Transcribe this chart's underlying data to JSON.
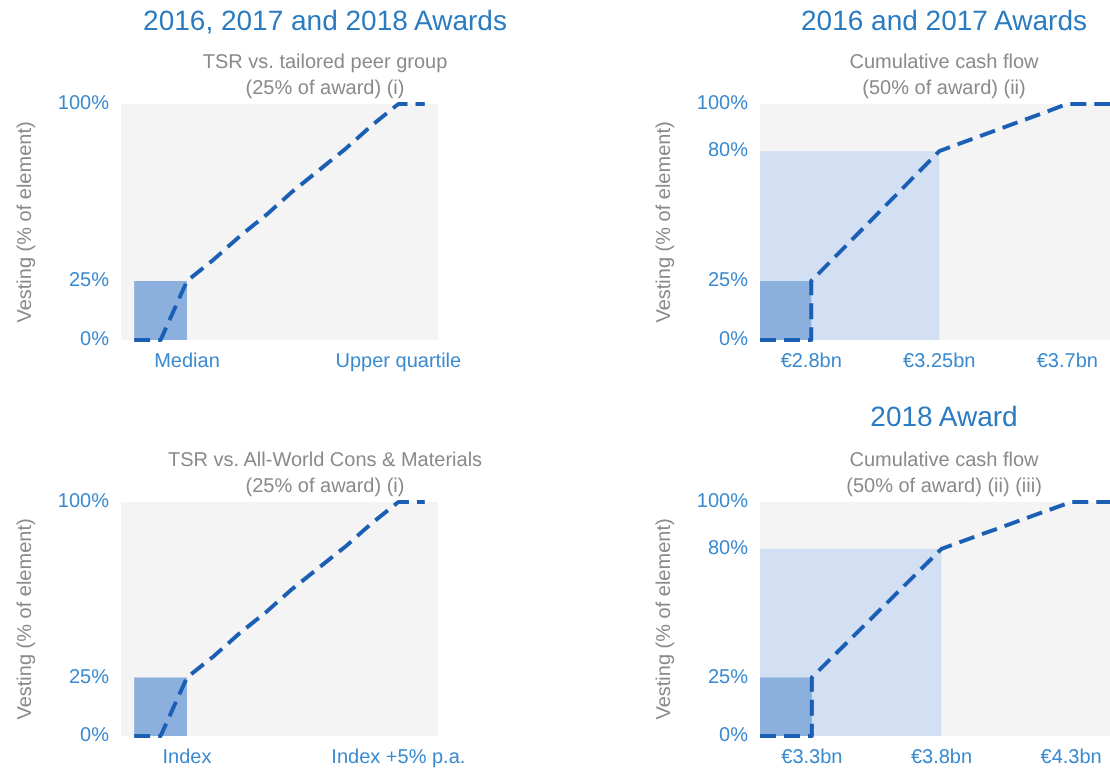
{
  "chart_data": [
    {
      "type": "line",
      "title": "2016, 2017 and 2018 Awards",
      "subtitle": "TSR vs. tailored peer group (25% of award) (i)",
      "ylabel": "Vesting (% of element)",
      "categories": [
        null,
        null,
        "Median",
        null,
        null,
        null,
        null,
        null,
        null,
        null,
        "Upper quartile",
        null
      ],
      "ylim": [
        0,
        100
      ],
      "yticks": [
        {
          "value": 0,
          "label": "0%"
        },
        {
          "value": 25,
          "label": "25%"
        },
        {
          "value": 100,
          "label": "100%"
        }
      ],
      "marker": "none",
      "line_style": "dashed",
      "grid": false,
      "series": [
        {
          "type": "area",
          "color": "#8cb0de",
          "values": [
            25,
            25,
            25,
            null,
            null,
            null,
            null,
            null,
            null,
            null,
            null,
            null
          ]
        },
        {
          "color": "#1a5fb4",
          "values": [
            0,
            0,
            25,
            34,
            44,
            53,
            63,
            72,
            81,
            91,
            100,
            100
          ]
        }
      ]
    },
    {
      "type": "line",
      "title": "2016 and 2017 Awards",
      "subtitle": "Cumulative cash flow (50% of award) (ii)",
      "ylabel": "Vesting (% of element)",
      "xlim": [
        2.62,
        3.85
      ],
      "xticks": [
        {
          "value": 2.8,
          "label": "€2.8bn"
        },
        {
          "value": 3.25,
          "label": "€3.25bn"
        },
        {
          "value": 3.7,
          "label": "€3.7bn"
        }
      ],
      "ylim": [
        0,
        100
      ],
      "yticks": [
        {
          "value": 0,
          "label": "0%"
        },
        {
          "value": 25,
          "label": "25%"
        },
        {
          "value": 80,
          "label": "80%"
        },
        {
          "value": 100,
          "label": "100%"
        }
      ],
      "marker": "none",
      "line_style": "dashed",
      "grid": false,
      "series": [
        {
          "type": "area",
          "color": "#d3dff3",
          "x": [
            2.62,
            3.25
          ],
          "values": [
            80,
            80
          ]
        },
        {
          "type": "area",
          "color": "#8cb0de",
          "x": [
            2.62,
            2.8
          ],
          "values": [
            25,
            25
          ]
        },
        {
          "color": "#1a5fb4",
          "x": [
            2.62,
            2.8,
            2.8,
            3.25,
            3.7,
            3.85
          ],
          "values": [
            0,
            0,
            25,
            80,
            100,
            100
          ]
        }
      ]
    },
    {
      "type": "line",
      "subtitle": "TSR vs. All-World Cons & Materials (25% of award) (i)",
      "ylabel": "Vesting (% of element)",
      "categories": [
        null,
        null,
        "Index",
        null,
        null,
        null,
        null,
        null,
        null,
        null,
        "Index +5% p.a.",
        null
      ],
      "ylim": [
        0,
        100
      ],
      "yticks": [
        {
          "value": 0,
          "label": "0%"
        },
        {
          "value": 25,
          "label": "25%"
        },
        {
          "value": 100,
          "label": "100%"
        }
      ],
      "marker": "none",
      "line_style": "dashed",
      "grid": false,
      "series": [
        {
          "type": "area",
          "color": "#8cb0de",
          "values": [
            25,
            25,
            25,
            null,
            null,
            null,
            null,
            null,
            null,
            null,
            null,
            null
          ]
        },
        {
          "color": "#1a5fb4",
          "values": [
            0,
            0,
            25,
            34,
            44,
            53,
            63,
            72,
            81,
            91,
            100,
            100
          ]
        }
      ]
    },
    {
      "type": "line",
      "title": "2018 Award",
      "subtitle": "Cumulative cash flow (50% of award) (ii) (iii)",
      "ylabel": "Vesting (% of element)",
      "xlim": [
        3.1,
        4.45
      ],
      "xticks": [
        {
          "value": 3.3,
          "label": "€3.3bn"
        },
        {
          "value": 3.8,
          "label": "€3.8bn"
        },
        {
          "value": 4.3,
          "label": "€4.3bn"
        }
      ],
      "ylim": [
        0,
        100
      ],
      "yticks": [
        {
          "value": 0,
          "label": "0%"
        },
        {
          "value": 25,
          "label": "25%"
        },
        {
          "value": 80,
          "label": "80%"
        },
        {
          "value": 100,
          "label": "100%"
        }
      ],
      "marker": "none",
      "line_style": "dashed",
      "grid": false,
      "series": [
        {
          "type": "area",
          "color": "#d3dff3",
          "x": [
            3.1,
            3.8
          ],
          "values": [
            80,
            80
          ]
        },
        {
          "type": "area",
          "color": "#8cb0de",
          "x": [
            3.1,
            3.3
          ],
          "values": [
            25,
            25
          ]
        },
        {
          "color": "#1a5fb4",
          "x": [
            3.1,
            3.3,
            3.3,
            3.8,
            4.3,
            4.45
          ],
          "values": [
            0,
            0,
            25,
            80,
            100,
            100
          ]
        }
      ]
    }
  ]
}
